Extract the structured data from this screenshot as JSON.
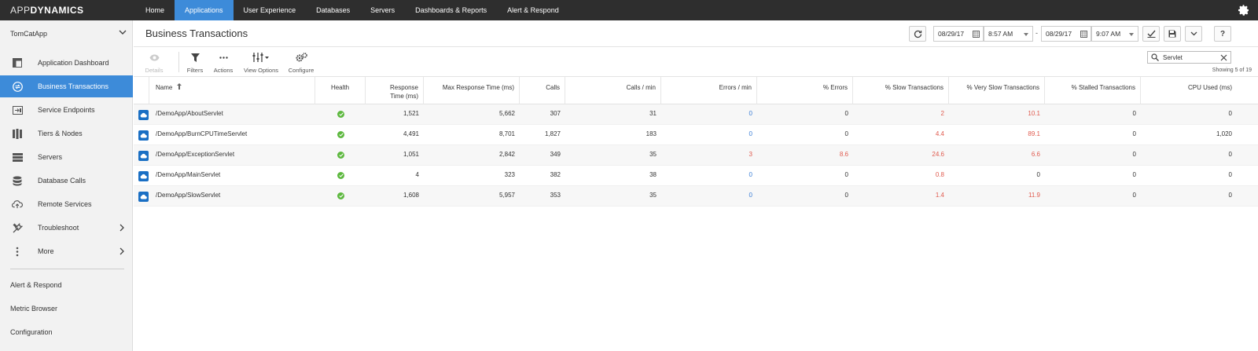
{
  "logo": {
    "light": "APP",
    "bold": "DYNAMICS"
  },
  "nav": [
    "Home",
    "Applications",
    "User Experience",
    "Databases",
    "Servers",
    "Dashboards & Reports",
    "Alert & Respond"
  ],
  "nav_active": "Applications",
  "sidebar": {
    "app_name": "TomCatApp",
    "items": [
      {
        "label": "Application Dashboard",
        "icon": "dashboard-icon"
      },
      {
        "label": "Business Transactions",
        "icon": "transactions-icon"
      },
      {
        "label": "Service Endpoints",
        "icon": "service-endpoint-icon"
      },
      {
        "label": "Tiers & Nodes",
        "icon": "tiers-nodes-icon"
      },
      {
        "label": "Servers",
        "icon": "servers-icon"
      },
      {
        "label": "Database Calls",
        "icon": "database-icon"
      },
      {
        "label": "Remote Services",
        "icon": "cloud-upload-icon"
      },
      {
        "label": "Troubleshoot",
        "icon": "tools-icon"
      },
      {
        "label": "More",
        "icon": "more-vertical-icon"
      }
    ],
    "links": [
      "Alert & Respond",
      "Metric Browser",
      "Configuration"
    ]
  },
  "header": {
    "title": "Business Transactions",
    "start_date": "08/29/17",
    "start_time": "8:57 AM",
    "separator": "-",
    "end_date": "08/29/17",
    "end_time": "9:07 AM",
    "help": "?"
  },
  "toolbar": {
    "details": "Details",
    "filters": "Filters",
    "actions": "Actions",
    "view_options": "View Options",
    "configure": "Configure"
  },
  "search": {
    "value": "Servlet"
  },
  "showing": "Showing 5 of 19",
  "table": {
    "columns": [
      "Name",
      "Health",
      "Response Time (ms)",
      "Max Response Time (ms)",
      "Calls",
      "Calls / min",
      "Errors / min",
      "% Errors",
      "% Slow Transactions",
      "% Very Slow Transactions",
      "% Stalled Transactions",
      "CPU Used (ms)"
    ],
    "rows": [
      {
        "name": "/DemoApp/AboutServlet",
        "rt": "1,521",
        "maxrt": "5,662",
        "calls": "307",
        "cpm": "31",
        "epm": "0",
        "perr": "0",
        "pslow": "2",
        "pvslow": "10.1",
        "pstall": "0",
        "cpu": "0"
      },
      {
        "name": "/DemoApp/BurnCPUTimeServlet",
        "rt": "4,491",
        "maxrt": "8,701",
        "calls": "1,827",
        "cpm": "183",
        "epm": "0",
        "perr": "0",
        "pslow": "4.4",
        "pvslow": "89.1",
        "pstall": "0",
        "cpu": "1,020"
      },
      {
        "name": "/DemoApp/ExceptionServlet",
        "rt": "1,051",
        "maxrt": "2,842",
        "calls": "349",
        "cpm": "35",
        "epm": "3",
        "perr": "8.6",
        "pslow": "24.6",
        "pvslow": "6.6",
        "pstall": "0",
        "cpu": "0"
      },
      {
        "name": "/DemoApp/MainServlet",
        "rt": "4",
        "maxrt": "323",
        "calls": "382",
        "cpm": "38",
        "epm": "0",
        "perr": "0",
        "pslow": "0.8",
        "pvslow": "0",
        "pstall": "0",
        "cpu": "0"
      },
      {
        "name": "/DemoApp/SlowServlet",
        "rt": "1,608",
        "maxrt": "5,957",
        "calls": "353",
        "cpm": "35",
        "epm": "0",
        "perr": "0",
        "pslow": "1.4",
        "pvslow": "11.9",
        "pstall": "0",
        "cpu": "0"
      }
    ]
  },
  "colors": {
    "accent": "#3d8bd9",
    "topbar": "#2e2e2e",
    "health_ok": "#5db83f",
    "error_red": "#e05a4e",
    "zero_blue": "#3d7fd6"
  }
}
